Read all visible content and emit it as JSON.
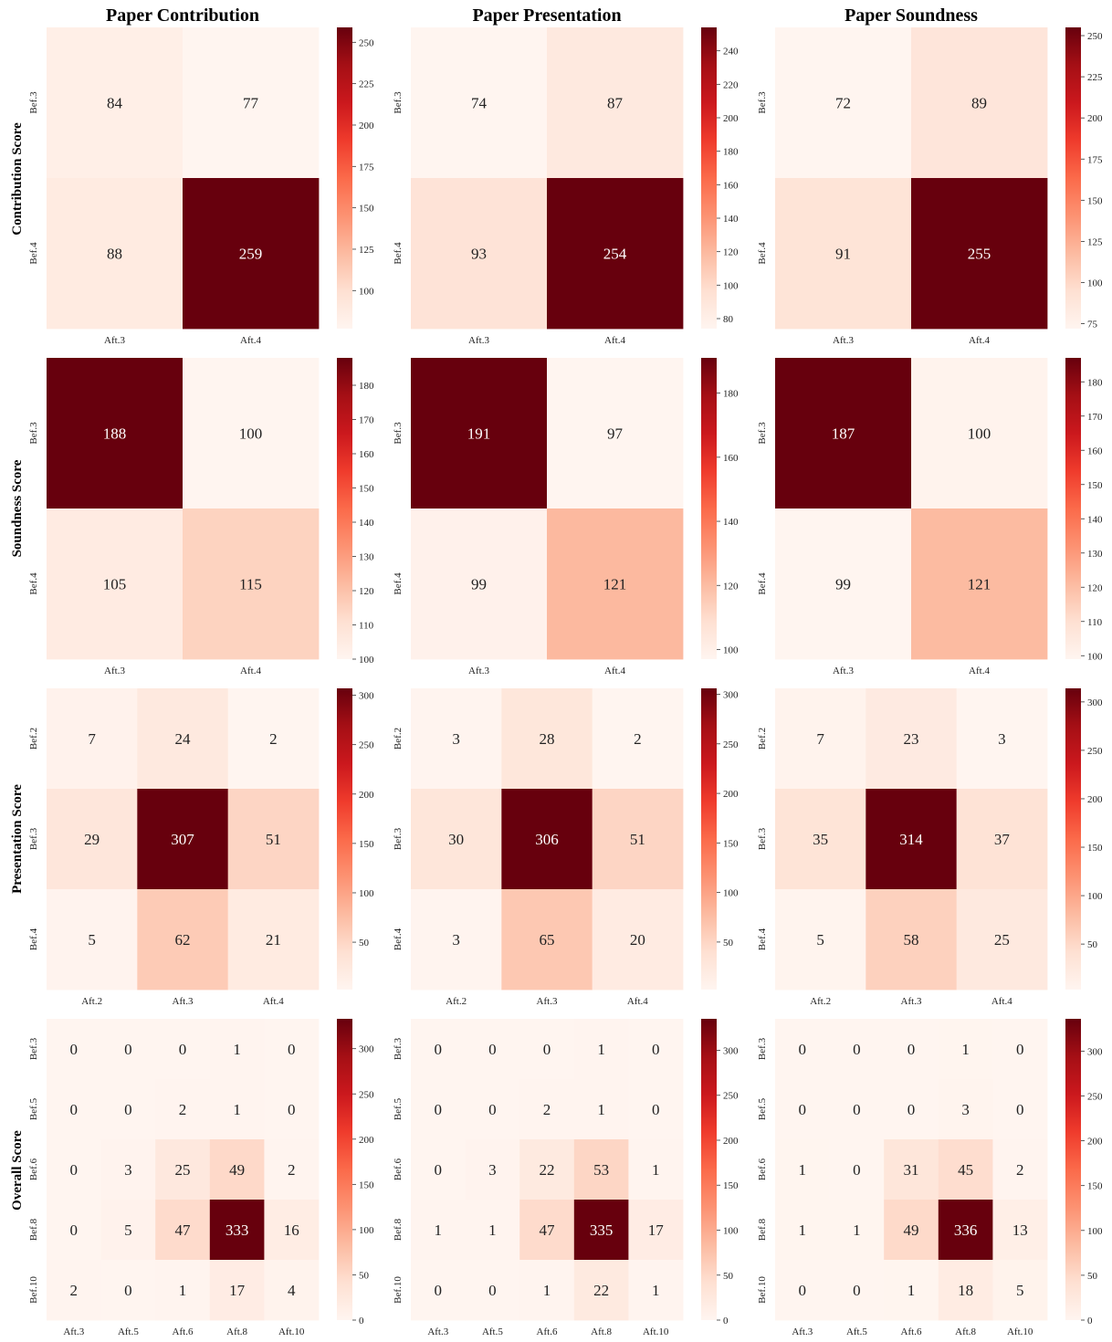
{
  "column_titles": [
    "Paper Contribution",
    "Paper Presentation",
    "Paper Soundness"
  ],
  "row_titles": [
    "Contribution Score",
    "Soundness Score",
    "Presentation Score",
    "Overall Score"
  ],
  "colormap": {
    "name": "Reds",
    "low": "#fff5f0",
    "high": "#67000d"
  },
  "chart_data": [
    {
      "type": "heatmap",
      "row": 0,
      "col": 0,
      "y_categories": [
        "Bef.3",
        "Bef.4"
      ],
      "x_categories": [
        "Aft.3",
        "Aft.4"
      ],
      "values": [
        [
          84,
          77
        ],
        [
          88,
          259
        ]
      ],
      "colorbar_ticks": [
        100,
        125,
        150,
        175,
        200,
        225,
        250
      ]
    },
    {
      "type": "heatmap",
      "row": 0,
      "col": 1,
      "y_categories": [
        "Bef.3",
        "Bef.4"
      ],
      "x_categories": [
        "Aft.3",
        "Aft.4"
      ],
      "values": [
        [
          74,
          87
        ],
        [
          93,
          254
        ]
      ],
      "colorbar_ticks": [
        80,
        100,
        120,
        140,
        160,
        180,
        200,
        220,
        240
      ]
    },
    {
      "type": "heatmap",
      "row": 0,
      "col": 2,
      "y_categories": [
        "Bef.3",
        "Bef.4"
      ],
      "x_categories": [
        "Aft.3",
        "Aft.4"
      ],
      "values": [
        [
          72,
          89
        ],
        [
          91,
          255
        ]
      ],
      "colorbar_ticks": [
        75,
        100,
        125,
        150,
        175,
        200,
        225,
        250
      ]
    },
    {
      "type": "heatmap",
      "row": 1,
      "col": 0,
      "y_categories": [
        "Bef.3",
        "Bef.4"
      ],
      "x_categories": [
        "Aft.3",
        "Aft.4"
      ],
      "values": [
        [
          188,
          100
        ],
        [
          105,
          115
        ]
      ],
      "colorbar_ticks": [
        100,
        110,
        120,
        130,
        140,
        150,
        160,
        170,
        180
      ]
    },
    {
      "type": "heatmap",
      "row": 1,
      "col": 1,
      "y_categories": [
        "Bef.3",
        "Bef.4"
      ],
      "x_categories": [
        "Aft.3",
        "Aft.4"
      ],
      "values": [
        [
          191,
          97
        ],
        [
          99,
          121
        ]
      ],
      "colorbar_ticks": [
        100,
        120,
        140,
        160,
        180
      ]
    },
    {
      "type": "heatmap",
      "row": 1,
      "col": 2,
      "y_categories": [
        "Bef.3",
        "Bef.4"
      ],
      "x_categories": [
        "Aft.3",
        "Aft.4"
      ],
      "values": [
        [
          187,
          100
        ],
        [
          99,
          121
        ]
      ],
      "colorbar_ticks": [
        100,
        110,
        120,
        130,
        140,
        150,
        160,
        170,
        180
      ]
    },
    {
      "type": "heatmap",
      "row": 2,
      "col": 0,
      "y_categories": [
        "Bef.2",
        "Bef.3",
        "Bef.4"
      ],
      "x_categories": [
        "Aft.2",
        "Aft.3",
        "Aft.4"
      ],
      "values": [
        [
          7,
          24,
          2
        ],
        [
          29,
          307,
          51
        ],
        [
          5,
          62,
          21
        ]
      ],
      "colorbar_ticks": [
        50,
        100,
        150,
        200,
        250,
        300
      ]
    },
    {
      "type": "heatmap",
      "row": 2,
      "col": 1,
      "y_categories": [
        "Bef.2",
        "Bef.3",
        "Bef.4"
      ],
      "x_categories": [
        "Aft.2",
        "Aft.3",
        "Aft.4"
      ],
      "values": [
        [
          3,
          28,
          2
        ],
        [
          30,
          306,
          51
        ],
        [
          3,
          65,
          20
        ]
      ],
      "colorbar_ticks": [
        50,
        100,
        150,
        200,
        250,
        300
      ]
    },
    {
      "type": "heatmap",
      "row": 2,
      "col": 2,
      "y_categories": [
        "Bef.2",
        "Bef.3",
        "Bef.4"
      ],
      "x_categories": [
        "Aft.2",
        "Aft.3",
        "Aft.4"
      ],
      "values": [
        [
          7,
          23,
          3
        ],
        [
          35,
          314,
          37
        ],
        [
          5,
          58,
          25
        ]
      ],
      "colorbar_ticks": [
        50,
        100,
        150,
        200,
        250,
        300
      ]
    },
    {
      "type": "heatmap",
      "row": 3,
      "col": 0,
      "y_categories": [
        "Bef.3",
        "Bef.5",
        "Bef.6",
        "Bef.8",
        "Bef.10"
      ],
      "x_categories": [
        "Aft.3",
        "Aft.5",
        "Aft.6",
        "Aft.8",
        "Aft.10"
      ],
      "values": [
        [
          0,
          0,
          0,
          1,
          0
        ],
        [
          0,
          0,
          2,
          1,
          0
        ],
        [
          0,
          3,
          25,
          49,
          2
        ],
        [
          0,
          5,
          47,
          333,
          16
        ],
        [
          2,
          0,
          1,
          17,
          4
        ]
      ],
      "colorbar_ticks": [
        0,
        50,
        100,
        150,
        200,
        250,
        300
      ]
    },
    {
      "type": "heatmap",
      "row": 3,
      "col": 1,
      "y_categories": [
        "Bef.3",
        "Bef.5",
        "Bef.6",
        "Bef.8",
        "Bef.10"
      ],
      "x_categories": [
        "Aft.3",
        "Aft.5",
        "Aft.6",
        "Aft.8",
        "Aft.10"
      ],
      "values": [
        [
          0,
          0,
          0,
          1,
          0
        ],
        [
          0,
          0,
          2,
          1,
          0
        ],
        [
          0,
          3,
          22,
          53,
          1
        ],
        [
          1,
          1,
          47,
          335,
          17
        ],
        [
          0,
          0,
          1,
          22,
          1
        ]
      ],
      "colorbar_ticks": [
        0,
        50,
        100,
        150,
        200,
        250,
        300
      ]
    },
    {
      "type": "heatmap",
      "row": 3,
      "col": 2,
      "y_categories": [
        "Bef.3",
        "Bef.5",
        "Bef.6",
        "Bef.8",
        "Bef.10"
      ],
      "x_categories": [
        "Aft.3",
        "Aft.5",
        "Aft.6",
        "Aft.8",
        "Aft.10"
      ],
      "values": [
        [
          0,
          0,
          0,
          1,
          0
        ],
        [
          0,
          0,
          0,
          3,
          0
        ],
        [
          1,
          0,
          31,
          45,
          2
        ],
        [
          1,
          1,
          49,
          336,
          13
        ],
        [
          0,
          0,
          1,
          18,
          5
        ]
      ],
      "colorbar_ticks": [
        0,
        50,
        100,
        150,
        200,
        250,
        300
      ]
    }
  ]
}
